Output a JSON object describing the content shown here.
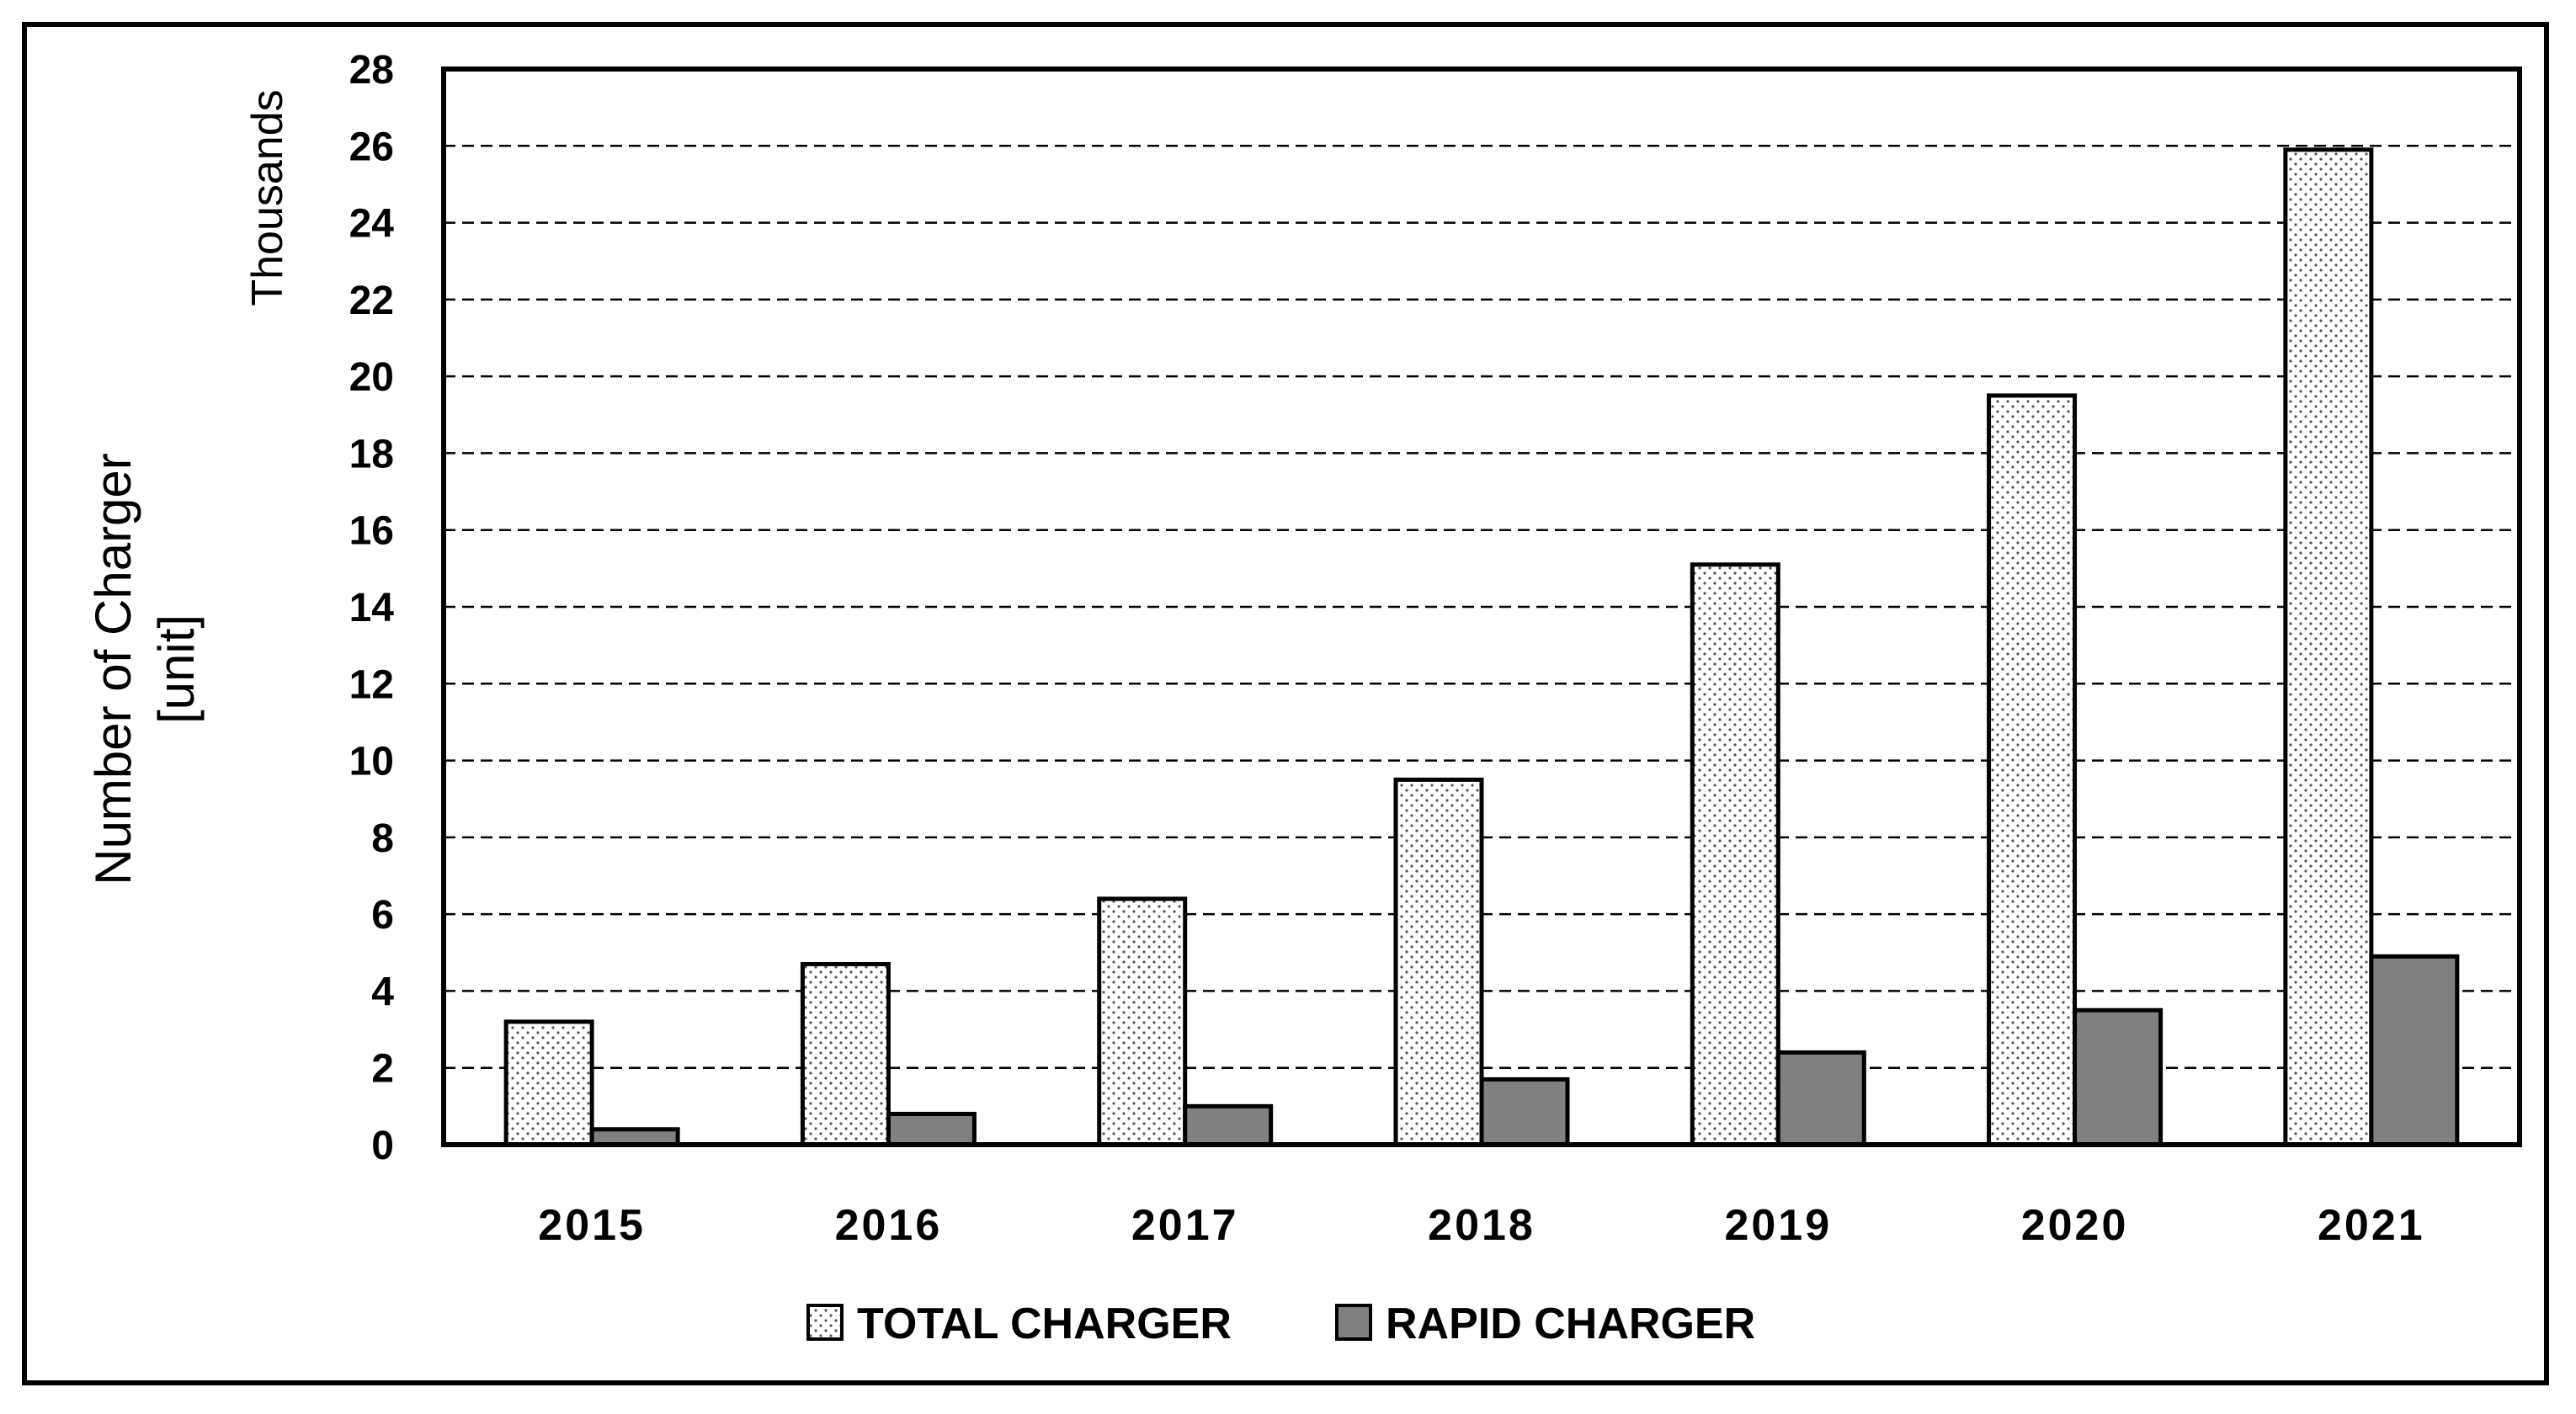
{
  "chart_data": {
    "type": "bar",
    "categories": [
      "2015",
      "2016",
      "2017",
      "2018",
      "2019",
      "2020",
      "2021"
    ],
    "series": [
      {
        "name": "TOTAL CHARGER",
        "values": [
          3.2,
          4.7,
          6.4,
          9.5,
          15.1,
          19.5,
          25.9
        ],
        "color": "#ffffff",
        "pattern": "dotted"
      },
      {
        "name": "RAPID CHARGER",
        "values": [
          0.4,
          0.8,
          1.0,
          1.7,
          2.4,
          3.5,
          4.9
        ],
        "color": "#808080",
        "pattern": "solid"
      }
    ],
    "y_ticks": [
      "0",
      "2",
      "4",
      "6",
      "8",
      "10",
      "12",
      "14",
      "16",
      "18",
      "20",
      "22",
      "24",
      "26",
      "28"
    ],
    "ylim": [
      0,
      28
    ],
    "ylabel_line1": "Number of Charger",
    "ylabel_line2": "[unit]",
    "y_unit_label": "Thousands",
    "xlabel": "",
    "title": "",
    "grid": "horizontal dashed",
    "legend_position": "bottom"
  }
}
